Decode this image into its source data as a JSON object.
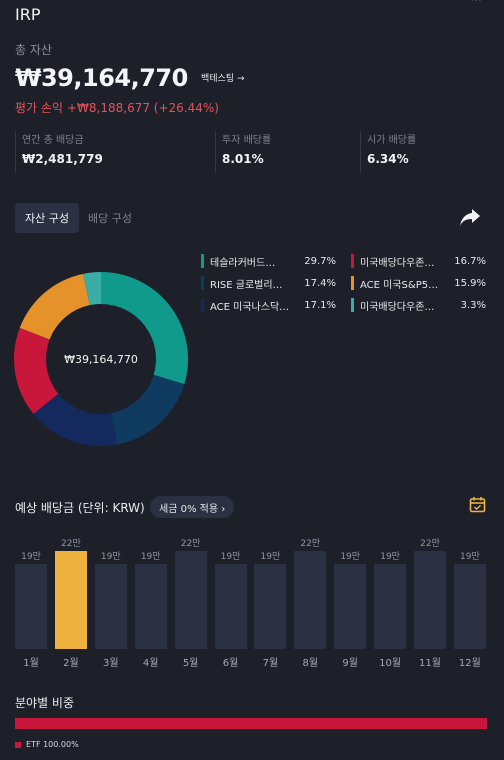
{
  "account": {
    "title": "IRP"
  },
  "summary": {
    "total_label": "총 자산",
    "total_value": "₩39,164,770",
    "backtest_label": "백테스팅 →",
    "pl_label": "평가 손익",
    "pl_value": "+₩8,188,677 (+26.44%)"
  },
  "stats": [
    {
      "label": "연간 총 배당금",
      "value": "₩2,481,779"
    },
    {
      "label": "투자 배당률",
      "value": "8.01%"
    },
    {
      "label": "시가 배당률",
      "value": "6.34%"
    }
  ],
  "tabs": {
    "asset": "자산 구성",
    "dividend": "배당 구성"
  },
  "donut": {
    "center_label": "₩39,164,770",
    "slices": [
      {
        "name": "테슬라커버드…",
        "pct": "29.7%",
        "value": 29.7,
        "color": "#0f9a8c"
      },
      {
        "name": "RISE 글로벌리…",
        "pct": "17.4%",
        "value": 17.4,
        "color": "#0e3b5f"
      },
      {
        "name": "ACE 미국나스닥…",
        "pct": "17.1%",
        "value": 17.1,
        "color": "#142a5e"
      },
      {
        "name": "미국배당다우존…",
        "pct": "16.7%",
        "value": 16.7,
        "color": "#c8173a"
      },
      {
        "name": "ACE 미국S&P5…",
        "pct": "15.9%",
        "value": 15.9,
        "color": "#e5922b"
      },
      {
        "name": "미국배당다우존…",
        "pct": "3.3%",
        "value": 3.3,
        "color": "#3aaea4"
      }
    ]
  },
  "dividend_forecast": {
    "title": "예상 배당금 (단위: KRW)",
    "tax_chip": "세금 0% 적용 ›",
    "bars": [
      {
        "month": "1월",
        "label": "19만",
        "value": 19,
        "highlight": false
      },
      {
        "month": "2월",
        "label": "22만",
        "value": 22,
        "highlight": true
      },
      {
        "month": "3월",
        "label": "19만",
        "value": 19,
        "highlight": false
      },
      {
        "month": "4월",
        "label": "19만",
        "value": 19,
        "highlight": false
      },
      {
        "month": "5월",
        "label": "22만",
        "value": 22,
        "highlight": false
      },
      {
        "month": "6월",
        "label": "19만",
        "value": 19,
        "highlight": false
      },
      {
        "month": "7월",
        "label": "19만",
        "value": 19,
        "highlight": false
      },
      {
        "month": "8월",
        "label": "22만",
        "value": 22,
        "highlight": false
      },
      {
        "month": "9월",
        "label": "19만",
        "value": 19,
        "highlight": false
      },
      {
        "month": "10월",
        "label": "19만",
        "value": 19,
        "highlight": false
      },
      {
        "month": "11월",
        "label": "22만",
        "value": 22,
        "highlight": false
      },
      {
        "month": "12월",
        "label": "19만",
        "value": 19,
        "highlight": false
      }
    ]
  },
  "sector": {
    "title": "분야별 비중",
    "legend": "ETF 100.00%",
    "share": 100
  },
  "colors": {
    "bar": "#2b3142",
    "bar_highlight": "#f0b23e",
    "negative": "#e2535b"
  }
}
